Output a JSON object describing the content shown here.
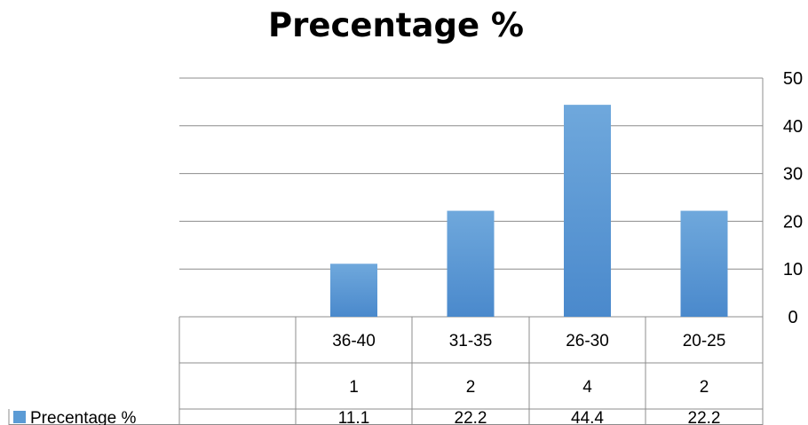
{
  "chart_data": {
    "type": "bar",
    "title": "Precentage %",
    "categories": [
      "",
      "36-40",
      "31-35",
      "26-30",
      "20-25"
    ],
    "table_rows": [
      [
        "",
        "1",
        "2",
        "4",
        "2"
      ]
    ],
    "series": [
      {
        "name": "Precentage %",
        "values": [
          null,
          11.1,
          22.2,
          44.4,
          22.2
        ],
        "value_labels": [
          "",
          "11.1",
          "22.2",
          "44.4",
          "22.2"
        ]
      }
    ],
    "ylim": [
      0,
      50
    ],
    "yticks": [
      "0",
      "10",
      "20",
      "30",
      "40",
      "50"
    ],
    "y_axis_position": "right",
    "grid": true,
    "legend_position": "data-table",
    "colors": {
      "bar_top": "#6fa8dc",
      "bar_bottom": "#4a89cc",
      "legend_key": "#5b9bd5",
      "grid": "#8c8c8c"
    }
  }
}
